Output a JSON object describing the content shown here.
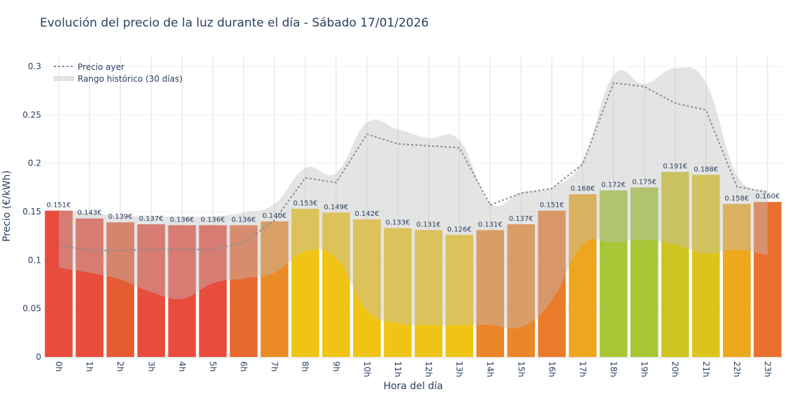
{
  "chart_data": {
    "type": "bar",
    "title": "Evolución del precio de la luz durante el día - Sábado 17/01/2026",
    "xlabel": "Hora del día",
    "ylabel": "Precio (€/kWh)",
    "ylim": [
      0,
      0.31
    ],
    "yticks": [
      "0",
      "0.05",
      "0.1",
      "0.15",
      "0.2",
      "0.25",
      "0.3"
    ],
    "grid": true,
    "legend_position": "top-left",
    "categories": [
      "0h",
      "1h",
      "2h",
      "3h",
      "4h",
      "5h",
      "6h",
      "7h",
      "8h",
      "9h",
      "10h",
      "11h",
      "12h",
      "13h",
      "14h",
      "15h",
      "16h",
      "17h",
      "18h",
      "19h",
      "20h",
      "21h",
      "22h",
      "23h"
    ],
    "values": [
      0.151,
      0.143,
      0.139,
      0.137,
      0.136,
      0.136,
      0.136,
      0.14,
      0.153,
      0.149,
      0.142,
      0.133,
      0.131,
      0.126,
      0.131,
      0.137,
      0.151,
      0.168,
      0.172,
      0.175,
      0.191,
      0.188,
      0.158,
      0.16
    ],
    "data_labels": [
      "0.151€",
      "0.143€",
      "0.139€",
      "0.137€",
      "0.136€",
      "0.136€",
      "0.136€",
      "0.140€",
      "0.153€",
      "0.149€",
      "0.142€",
      "0.133€",
      "0.131€",
      "0.126€",
      "0.131€",
      "0.137€",
      "0.151€",
      "0.168€",
      "0.172€",
      "0.175€",
      "0.191€",
      "0.188€",
      "0.158€",
      "0.160€"
    ],
    "bar_colors": [
      "#e74c3c",
      "#e74c3c",
      "#e65c33",
      "#e74c3c",
      "#e74c3c",
      "#e74c3c",
      "#e8692f",
      "#ec8a27",
      "#f0c414",
      "#f0c414",
      "#f0c414",
      "#f0c414",
      "#f0c414",
      "#f0c414",
      "#ec8529",
      "#ec8529",
      "#eb7b2b",
      "#eea61e",
      "#a8c636",
      "#a8c636",
      "#cfc41f",
      "#dcc41b",
      "#eea81e",
      "#ea7030"
    ],
    "series": [
      {
        "name": "Precio ayer",
        "type": "line",
        "style": "dotted",
        "color": "#8c8c96",
        "values": [
          0.115,
          0.11,
          0.11,
          0.111,
          0.111,
          0.111,
          0.118,
          0.141,
          0.185,
          0.18,
          0.23,
          0.22,
          0.218,
          0.216,
          0.157,
          0.169,
          0.174,
          0.199,
          0.283,
          0.279,
          0.262,
          0.255,
          0.176,
          0.17
        ]
      },
      {
        "name": "Rango histórico (30 días)",
        "type": "band",
        "color": "#c8c8c8",
        "upper": [
          0.152,
          0.149,
          0.146,
          0.145,
          0.145,
          0.145,
          0.149,
          0.158,
          0.195,
          0.19,
          0.242,
          0.235,
          0.226,
          0.224,
          0.159,
          0.17,
          0.175,
          0.203,
          0.291,
          0.282,
          0.298,
          0.283,
          0.188,
          0.172
        ],
        "lower": [
          0.092,
          0.087,
          0.08,
          0.067,
          0.06,
          0.076,
          0.081,
          0.087,
          0.109,
          0.102,
          0.048,
          0.035,
          0.033,
          0.033,
          0.033,
          0.031,
          0.058,
          0.116,
          0.118,
          0.121,
          0.116,
          0.107,
          0.111,
          0.105
        ]
      }
    ]
  }
}
